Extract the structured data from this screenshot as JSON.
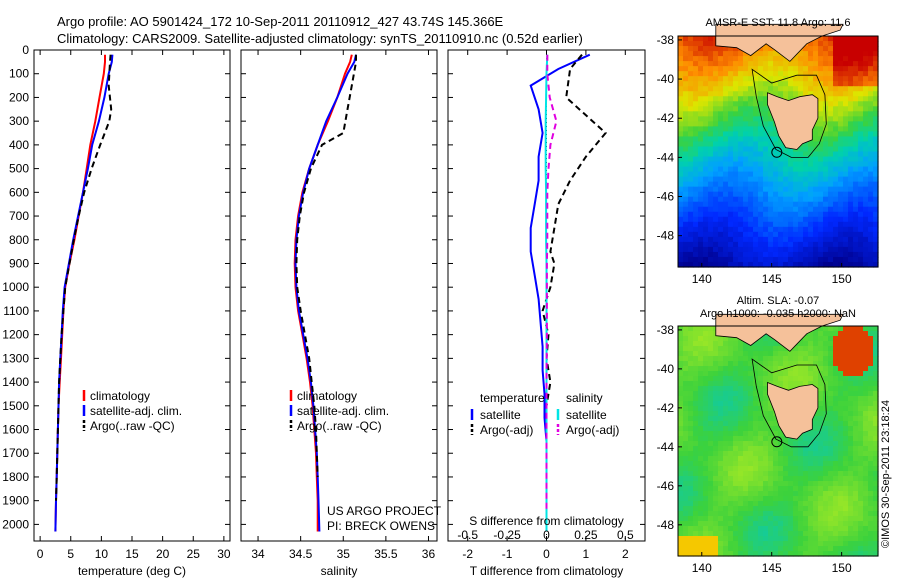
{
  "header": {
    "line1": "Argo profile: AO 5901424_172 10-Sep-2011 20110912_427 43.74S 145.366E",
    "line2": "Climatology: CARS2009. Satellite-adjusted climatology: synTS_20110910.nc (0.52d earlier)"
  },
  "side_label": "©IMOS 30-Sep-2011 23:18:24",
  "colors": {
    "climatology": "#ff0000",
    "satellite": "#0000ff",
    "argo": "#000000",
    "salinity_satellite": "#00e5e5",
    "salinity_argo": "#e000e0",
    "land": "#f5c19a"
  },
  "chart_data": [
    {
      "type": "line",
      "xlabel": "temperature (deg C)",
      "ylabel": "",
      "xlim": [
        -1,
        31
      ],
      "ylim": [
        2070,
        0
      ],
      "xticks": [
        0,
        5,
        10,
        15,
        20,
        25,
        30
      ],
      "yticks": [
        0,
        100,
        200,
        300,
        400,
        500,
        600,
        700,
        800,
        900,
        1000,
        1100,
        1200,
        1300,
        1400,
        1500,
        1600,
        1700,
        1800,
        1900,
        2000
      ],
      "legend": [
        "climatology",
        "satellite-adj. clim.",
        "Argo(..raw -QC)"
      ],
      "legend_placement": "lower-middle",
      "series": [
        {
          "name": "climatology",
          "color": "#ff0000",
          "dash": "",
          "x": [
            10.6,
            10.6,
            10.4,
            9.7,
            9.0,
            8.2,
            7.6,
            7.0,
            6.3,
            5.6,
            4.8,
            4.1,
            3.8,
            3.6,
            3.4,
            3.2,
            3.0,
            2.9,
            2.8,
            2.7,
            2.6,
            2.5
          ],
          "y": [
            20,
            50,
            100,
            200,
            300,
            400,
            500,
            600,
            700,
            800,
            900,
            1000,
            1100,
            1200,
            1300,
            1400,
            1500,
            1600,
            1700,
            1800,
            1900,
            2030
          ]
        },
        {
          "name": "satellite-adj. clim.",
          "color": "#0000ff",
          "dash": "",
          "x": [
            11.8,
            11.7,
            11.2,
            10.5,
            9.6,
            8.5,
            7.8,
            7.0,
            6.2,
            5.4,
            4.7,
            4.0,
            3.7,
            3.5,
            3.3,
            3.1,
            3.0,
            2.9,
            2.8,
            2.7,
            2.6,
            2.5
          ],
          "y": [
            20,
            50,
            100,
            200,
            300,
            400,
            500,
            600,
            700,
            800,
            900,
            1000,
            1100,
            1200,
            1300,
            1400,
            1500,
            1600,
            1700,
            1800,
            1900,
            2030
          ]
        },
        {
          "name": "Argo(..raw -QC)",
          "color": "#000000",
          "dash": "6,4",
          "x": [
            11.5,
            11.4,
            11.2,
            11.6,
            11.3,
            9.8,
            8.4,
            7.2,
            6.3,
            5.5,
            4.8,
            4.1,
            3.8,
            3.5,
            3.3,
            3.1,
            3.0,
            2.9,
            2.8,
            2.7,
            2.6
          ],
          "y": [
            20,
            50,
            150,
            250,
            300,
            400,
            500,
            600,
            700,
            800,
            900,
            1000,
            1100,
            1200,
            1300,
            1400,
            1500,
            1600,
            1700,
            1800,
            1900
          ]
        }
      ]
    },
    {
      "type": "line",
      "xlabel": "salinity",
      "ylabel": "",
      "xlim": [
        33.8,
        36.1
      ],
      "ylim": [
        2070,
        0
      ],
      "xticks": [
        34,
        34.5,
        35,
        35.5,
        36
      ],
      "legend": [
        "climatology",
        "satellite-adj. clim.",
        "Argo(..raw -QC)"
      ],
      "legend_placement": "lower-middle",
      "annotations": [
        "US ARGO PROJECT",
        "PI: BRECK OWENS"
      ],
      "series": [
        {
          "name": "climatology",
          "color": "#ff0000",
          "dash": "",
          "x": [
            35.1,
            35.08,
            35.02,
            34.93,
            34.82,
            34.7,
            34.6,
            34.52,
            34.47,
            34.44,
            34.43,
            34.44,
            34.47,
            34.52,
            34.57,
            34.61,
            34.64,
            34.66,
            34.68,
            34.69,
            34.7,
            34.7
          ],
          "y": [
            20,
            50,
            100,
            200,
            300,
            400,
            500,
            600,
            700,
            800,
            900,
            1000,
            1100,
            1200,
            1300,
            1400,
            1500,
            1600,
            1700,
            1800,
            1900,
            2030
          ]
        },
        {
          "name": "satellite-adj. clim.",
          "color": "#0000ff",
          "dash": "",
          "x": [
            35.15,
            35.13,
            35.05,
            34.93,
            34.8,
            34.7,
            34.6,
            34.53,
            34.48,
            34.45,
            34.44,
            34.45,
            34.48,
            34.53,
            34.58,
            34.62,
            34.65,
            34.67,
            34.69,
            34.7,
            34.71,
            34.72
          ],
          "y": [
            20,
            50,
            100,
            200,
            300,
            400,
            500,
            600,
            700,
            800,
            900,
            1000,
            1100,
            1200,
            1300,
            1400,
            1500,
            1600,
            1700,
            1800,
            1900,
            2030
          ]
        },
        {
          "name": "Argo(..raw -QC)",
          "color": "#000000",
          "dash": "6,4",
          "x": [
            35.15,
            35.15,
            35.1,
            35.05,
            35.0,
            34.75,
            34.62,
            34.54,
            34.49,
            34.46,
            34.45,
            34.46,
            34.5,
            34.55,
            34.6,
            34.63,
            34.66,
            34.68,
            34.69,
            34.7
          ],
          "y": [
            20,
            50,
            150,
            250,
            350,
            400,
            500,
            600,
            700,
            800,
            900,
            1000,
            1100,
            1200,
            1300,
            1400,
            1500,
            1600,
            1700,
            1800
          ]
        }
      ]
    },
    {
      "type": "line",
      "xlabel": "T difference from climatology",
      "top_label": "S difference from climatology",
      "xlim": [
        -2.5,
        2.5
      ],
      "ylim": [
        2070,
        0
      ],
      "xticks": [
        -2,
        -1,
        0,
        1,
        2
      ],
      "s_ticks": [
        -0.5,
        -0.25,
        0,
        0.25,
        0.5
      ],
      "s_tick_labels": [
        "-0.5",
        "-0.25",
        "0",
        "0.25",
        "0.5"
      ],
      "legend_groups": [
        {
          "title": "temperature",
          "items": [
            "satellite",
            "Argo(-adj)"
          ]
        },
        {
          "title": "salinity",
          "items": [
            "satellite",
            "Argo(-adj)"
          ]
        }
      ],
      "legend_placement": "lower-middle",
      "series": [
        {
          "name": "temperature satellite",
          "color": "#0000ff",
          "dash": "",
          "x": [
            1.1,
            0.3,
            -0.4,
            -0.2,
            -0.1,
            -0.2,
            -0.2,
            -0.3,
            -0.4,
            -0.4,
            -0.3,
            -0.2,
            -0.15,
            -0.1,
            -0.1,
            -0.05,
            -0.05,
            0.0,
            0.0,
            0.0,
            0.0
          ],
          "y": [
            20,
            80,
            150,
            250,
            350,
            450,
            550,
            650,
            750,
            850,
            950,
            1050,
            1150,
            1250,
            1350,
            1450,
            1550,
            1650,
            1750,
            1850,
            2030
          ]
        },
        {
          "name": "temperature Argo(-adj)",
          "color": "#000000",
          "dash": "6,4",
          "x": [
            0.9,
            0.6,
            0.5,
            1.5,
            1.0,
            0.6,
            0.3,
            0.2,
            0.1,
            0.2,
            0.1,
            -0.1,
            0.05,
            0.0,
            0.1,
            0.0,
            0.0,
            0.0,
            0.0,
            0.0
          ],
          "y": [
            20,
            80,
            200,
            350,
            450,
            550,
            650,
            750,
            850,
            900,
            1000,
            1100,
            1200,
            1300,
            1400,
            1500,
            1600,
            1700,
            1800,
            1900
          ]
        },
        {
          "name": "salinity satellite",
          "color": "#00e5e5",
          "dash": "",
          "x": [
            0.02,
            0.0,
            -0.01,
            -0.02,
            -0.02,
            -0.02,
            -0.01,
            -0.01,
            -0.01,
            0.0,
            0.0,
            0.0,
            0.0,
            0.0,
            0.0,
            0.0,
            0.0,
            0.0,
            0.0,
            0.0
          ],
          "y": [
            20,
            100,
            200,
            300,
            400,
            500,
            600,
            700,
            800,
            900,
            1000,
            1100,
            1200,
            1300,
            1400,
            1500,
            1600,
            1700,
            1800,
            2030
          ]
        },
        {
          "name": "salinity Argo(-adj)",
          "color": "#e000e0",
          "dash": "6,4",
          "x": [
            0.02,
            0.02,
            0.08,
            0.25,
            0.1,
            0.05,
            0.02,
            0.02,
            0.02,
            0.01,
            0.01,
            0.01,
            0.0,
            0.0,
            0.0,
            0.0
          ],
          "y": [
            20,
            100,
            200,
            300,
            400,
            500,
            600,
            700,
            800,
            900,
            1000,
            1200,
            1400,
            1600,
            1800,
            1950
          ]
        }
      ]
    }
  ],
  "maps": [
    {
      "title": "AMSR-E SST: 11.8 Argo: 11.6",
      "subtitle": "",
      "palette": "sst",
      "xticks": [
        140,
        145,
        150
      ],
      "yticks": [
        -38,
        -40,
        -42,
        -44,
        -46,
        -48
      ],
      "ytick_labels": [
        "-38",
        "-40",
        "-42",
        "-44",
        "-46",
        "-48"
      ]
    },
    {
      "title": "Altim. SLA: -0.07",
      "subtitle": "Argo h1000: -0.035 h2000: NaN",
      "palette": "sla",
      "xticks": [
        140,
        145,
        150
      ],
      "yticks": [
        -38,
        -40,
        -42,
        -44,
        -46,
        -48
      ],
      "ytick_labels": [
        "-38",
        "-40",
        "-42",
        "-44",
        "-46",
        "-48"
      ]
    }
  ],
  "argo_location": {
    "lon": 145.366,
    "lat": -43.74
  }
}
